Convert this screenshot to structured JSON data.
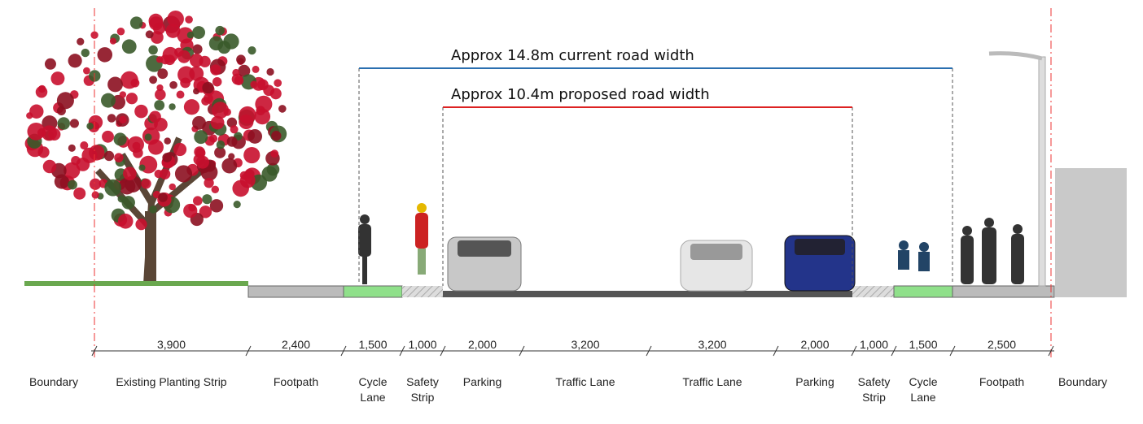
{
  "annotations": [
    {
      "label": "Approx 14.8m current road width"
    },
    {
      "label": "Approx 10.4m proposed road width"
    }
  ],
  "boundaries": [
    "Boundary",
    "Boundary"
  ],
  "segments": [
    {
      "width": "3,900",
      "label": "Existing Planting Strip"
    },
    {
      "width": "2,400",
      "label": "Footpath"
    },
    {
      "width": "1,500",
      "label": "Cycle Lane"
    },
    {
      "width": "1,000",
      "label": "Safety Strip"
    },
    {
      "width": "2,000",
      "label": "Parking"
    },
    {
      "width": "3,200",
      "label": "Traffic Lane"
    },
    {
      "width": "3,200",
      "label": "Traffic Lane"
    },
    {
      "width": "2,000",
      "label": "Parking"
    },
    {
      "width": "1,000",
      "label": "Safety Strip"
    },
    {
      "width": "1,500",
      "label": "Cycle Lane"
    },
    {
      "width": "2,500",
      "label": "Footpath"
    }
  ]
}
